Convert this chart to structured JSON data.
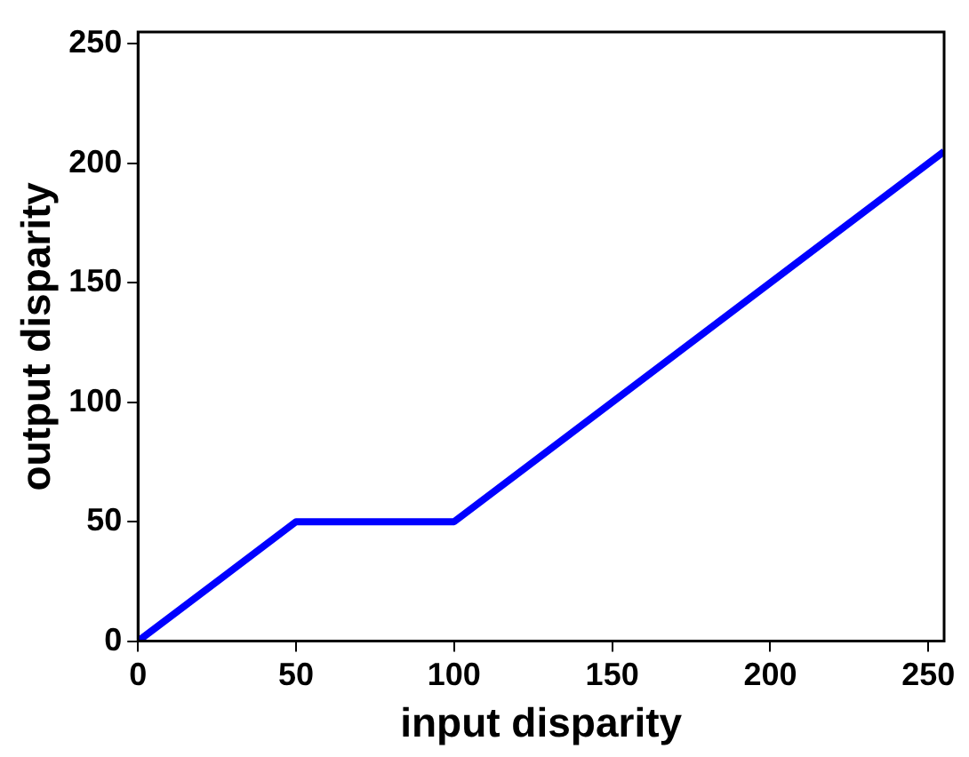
{
  "chart_data": {
    "type": "line",
    "xlabel": "input disparity",
    "ylabel": "output disparity",
    "x": [
      0,
      50,
      100,
      255
    ],
    "values": [
      0,
      50,
      50,
      205
    ],
    "color": "#0000ff",
    "xlim": [
      0,
      255
    ],
    "ylim": [
      0,
      255
    ],
    "xticks": [
      0,
      50,
      100,
      150,
      200,
      250
    ],
    "yticks": [
      0,
      50,
      100,
      150,
      200,
      250
    ],
    "grid": false,
    "marker": "none",
    "line_style": "solid"
  }
}
